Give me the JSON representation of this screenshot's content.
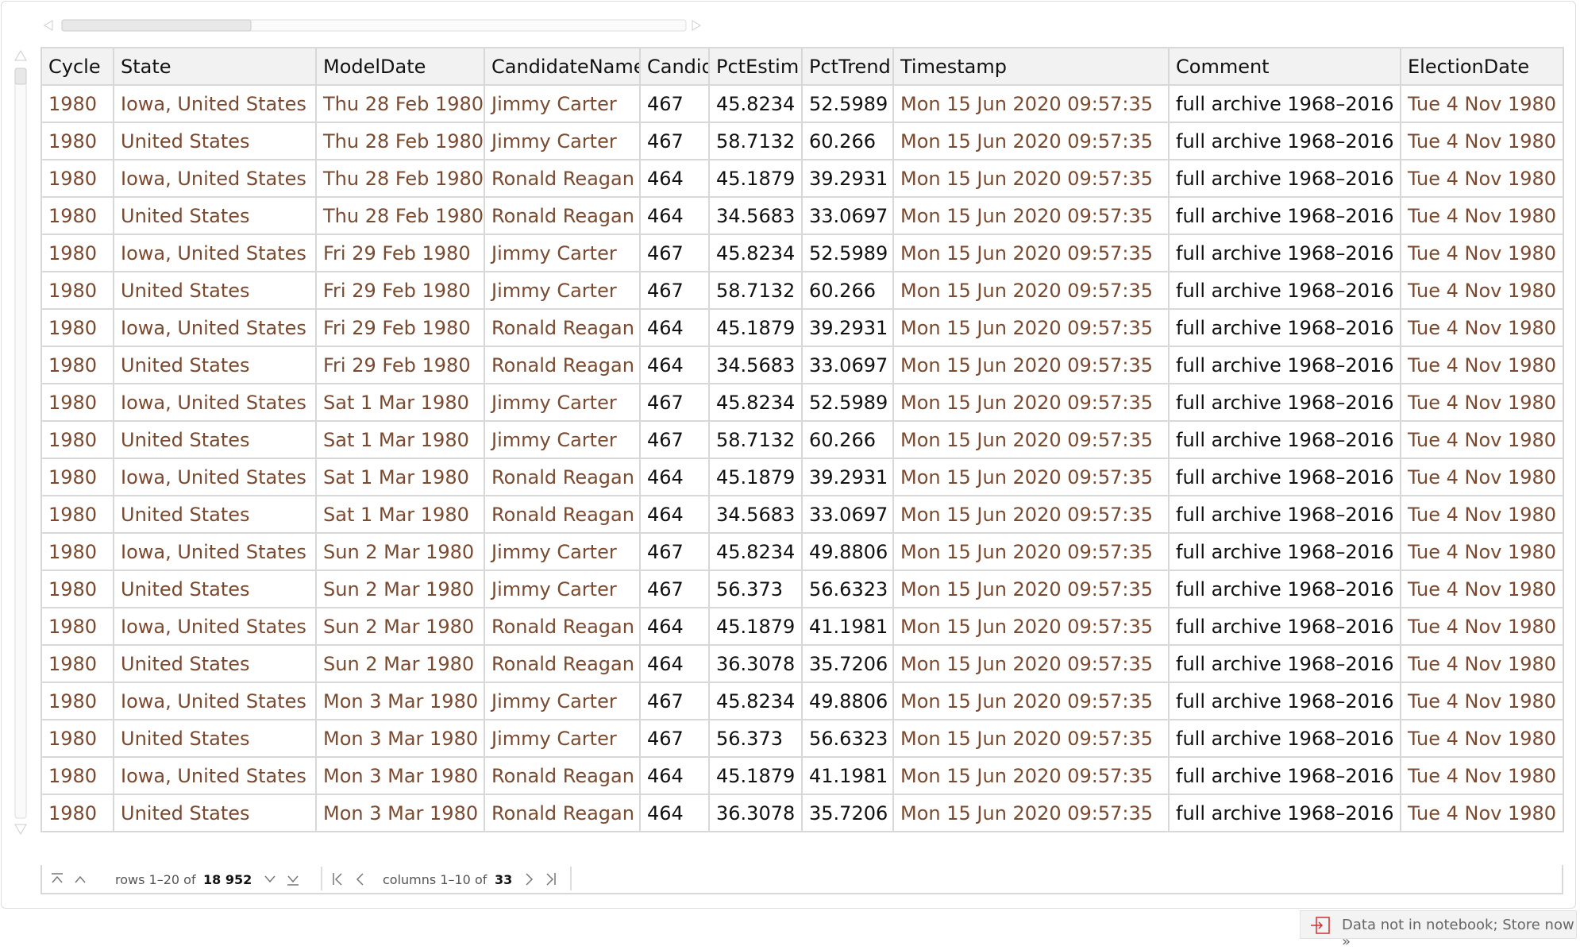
{
  "table": {
    "columns": [
      "Cycle",
      "State",
      "ModelDate",
      "CandidateName",
      "Candid",
      "PctEstim",
      "PctTrend",
      "Timestamp",
      "Comment",
      "ElectionDate"
    ],
    "rows": [
      [
        "1980",
        "Iowa, United States",
        "Thu 28 Feb 1980",
        "Jimmy Carter",
        "467",
        "45.8234",
        "52.5989",
        "Mon 15 Jun 2020 09:57:35",
        "full archive 1968–2016",
        "Tue 4 Nov 1980"
      ],
      [
        "1980",
        "United States",
        "Thu 28 Feb 1980",
        "Jimmy Carter",
        "467",
        "58.7132",
        "60.266",
        "Mon 15 Jun 2020 09:57:35",
        "full archive 1968–2016",
        "Tue 4 Nov 1980"
      ],
      [
        "1980",
        "Iowa, United States",
        "Thu 28 Feb 1980",
        "Ronald Reagan",
        "464",
        "45.1879",
        "39.2931",
        "Mon 15 Jun 2020 09:57:35",
        "full archive 1968–2016",
        "Tue 4 Nov 1980"
      ],
      [
        "1980",
        "United States",
        "Thu 28 Feb 1980",
        "Ronald Reagan",
        "464",
        "34.5683",
        "33.0697",
        "Mon 15 Jun 2020 09:57:35",
        "full archive 1968–2016",
        "Tue 4 Nov 1980"
      ],
      [
        "1980",
        "Iowa, United States",
        "Fri 29 Feb 1980",
        "Jimmy Carter",
        "467",
        "45.8234",
        "52.5989",
        "Mon 15 Jun 2020 09:57:35",
        "full archive 1968–2016",
        "Tue 4 Nov 1980"
      ],
      [
        "1980",
        "United States",
        "Fri 29 Feb 1980",
        "Jimmy Carter",
        "467",
        "58.7132",
        "60.266",
        "Mon 15 Jun 2020 09:57:35",
        "full archive 1968–2016",
        "Tue 4 Nov 1980"
      ],
      [
        "1980",
        "Iowa, United States",
        "Fri 29 Feb 1980",
        "Ronald Reagan",
        "464",
        "45.1879",
        "39.2931",
        "Mon 15 Jun 2020 09:57:35",
        "full archive 1968–2016",
        "Tue 4 Nov 1980"
      ],
      [
        "1980",
        "United States",
        "Fri 29 Feb 1980",
        "Ronald Reagan",
        "464",
        "34.5683",
        "33.0697",
        "Mon 15 Jun 2020 09:57:35",
        "full archive 1968–2016",
        "Tue 4 Nov 1980"
      ],
      [
        "1980",
        "Iowa, United States",
        "Sat 1 Mar 1980",
        "Jimmy Carter",
        "467",
        "45.8234",
        "52.5989",
        "Mon 15 Jun 2020 09:57:35",
        "full archive 1968–2016",
        "Tue 4 Nov 1980"
      ],
      [
        "1980",
        "United States",
        "Sat 1 Mar 1980",
        "Jimmy Carter",
        "467",
        "58.7132",
        "60.266",
        "Mon 15 Jun 2020 09:57:35",
        "full archive 1968–2016",
        "Tue 4 Nov 1980"
      ],
      [
        "1980",
        "Iowa, United States",
        "Sat 1 Mar 1980",
        "Ronald Reagan",
        "464",
        "45.1879",
        "39.2931",
        "Mon 15 Jun 2020 09:57:35",
        "full archive 1968–2016",
        "Tue 4 Nov 1980"
      ],
      [
        "1980",
        "United States",
        "Sat 1 Mar 1980",
        "Ronald Reagan",
        "464",
        "34.5683",
        "33.0697",
        "Mon 15 Jun 2020 09:57:35",
        "full archive 1968–2016",
        "Tue 4 Nov 1980"
      ],
      [
        "1980",
        "Iowa, United States",
        "Sun 2 Mar 1980",
        "Jimmy Carter",
        "467",
        "45.8234",
        "49.8806",
        "Mon 15 Jun 2020 09:57:35",
        "full archive 1968–2016",
        "Tue 4 Nov 1980"
      ],
      [
        "1980",
        "United States",
        "Sun 2 Mar 1980",
        "Jimmy Carter",
        "467",
        "56.373",
        "56.6323",
        "Mon 15 Jun 2020 09:57:35",
        "full archive 1968–2016",
        "Tue 4 Nov 1980"
      ],
      [
        "1980",
        "Iowa, United States",
        "Sun 2 Mar 1980",
        "Ronald Reagan",
        "464",
        "45.1879",
        "41.1981",
        "Mon 15 Jun 2020 09:57:35",
        "full archive 1968–2016",
        "Tue 4 Nov 1980"
      ],
      [
        "1980",
        "United States",
        "Sun 2 Mar 1980",
        "Ronald Reagan",
        "464",
        "36.3078",
        "35.7206",
        "Mon 15 Jun 2020 09:57:35",
        "full archive 1968–2016",
        "Tue 4 Nov 1980"
      ],
      [
        "1980",
        "Iowa, United States",
        "Mon 3 Mar 1980",
        "Jimmy Carter",
        "467",
        "45.8234",
        "49.8806",
        "Mon 15 Jun 2020 09:57:35",
        "full archive 1968–2016",
        "Tue 4 Nov 1980"
      ],
      [
        "1980",
        "United States",
        "Mon 3 Mar 1980",
        "Jimmy Carter",
        "467",
        "56.373",
        "56.6323",
        "Mon 15 Jun 2020 09:57:35",
        "full archive 1968–2016",
        "Tue 4 Nov 1980"
      ],
      [
        "1980",
        "Iowa, United States",
        "Mon 3 Mar 1980",
        "Ronald Reagan",
        "464",
        "45.1879",
        "41.1981",
        "Mon 15 Jun 2020 09:57:35",
        "full archive 1968–2016",
        "Tue 4 Nov 1980"
      ],
      [
        "1980",
        "United States",
        "Mon 3 Mar 1980",
        "Ronald Reagan",
        "464",
        "36.3078",
        "35.7206",
        "Mon 15 Jun 2020 09:57:35",
        "full archive 1968–2016",
        "Tue 4 Nov 1980"
      ]
    ]
  },
  "footer": {
    "rows_text": "rows 1–20 of",
    "rows_total": "18 952",
    "columns_text": "columns 1–10 of",
    "columns_total": "33"
  },
  "status": {
    "text": "Data not in notebook; Store now »"
  }
}
